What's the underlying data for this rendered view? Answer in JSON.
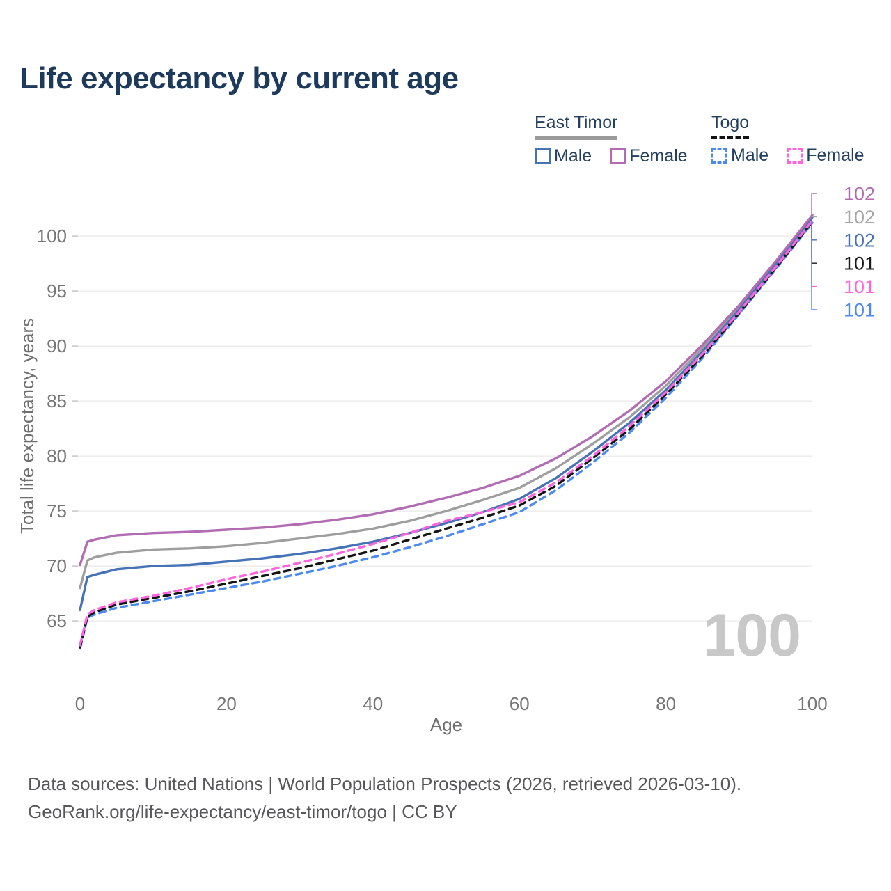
{
  "title": "Life expectancy by current age",
  "legend": {
    "groups": [
      {
        "name": "East Timor",
        "line_style": "solid",
        "underline_color": "#9b9b9b",
        "items": [
          {
            "label": "Male",
            "color": "#4673b5"
          },
          {
            "label": "Female",
            "color": "#b26cb2"
          }
        ]
      },
      {
        "name": "Togo",
        "line_style": "dashed",
        "underline_color": "#141414",
        "items": [
          {
            "label": "Male",
            "color": "#4d8af0"
          },
          {
            "label": "Female",
            "color": "#ff63dd"
          }
        ]
      }
    ]
  },
  "footer": {
    "line1": "Data sources: United Nations | World Population Prospects (2026, retrieved 2026-03-10).",
    "line2": "GeoRank.org/life-expectancy/east-timor/togo | CC BY"
  },
  "chart_data": {
    "type": "line",
    "title": "Life expectancy by current age",
    "xlabel": "Age",
    "ylabel": "Total life expectancy, years",
    "xlim": [
      0,
      100
    ],
    "ylim": [
      61.5,
      103
    ],
    "xticks": [
      0,
      20,
      40,
      60,
      80,
      100
    ],
    "yticks": [
      65,
      70,
      75,
      80,
      85,
      90,
      95,
      100
    ],
    "grid": "horizontal-only",
    "legend_position": "top-right",
    "age_indicator": "100",
    "x": [
      0,
      1,
      2,
      5,
      10,
      15,
      20,
      25,
      30,
      35,
      40,
      45,
      50,
      55,
      60,
      65,
      70,
      75,
      80,
      85,
      90,
      95,
      100
    ],
    "series": [
      {
        "name": "East Timor Both sexes",
        "country": "East Timor",
        "sex": "Both",
        "color": "#9e9e9e",
        "dashed": false,
        "values": [
          68.0,
          70.5,
          70.8,
          71.2,
          71.5,
          71.6,
          71.8,
          72.1,
          72.5,
          72.9,
          73.4,
          74.1,
          75.0,
          76.0,
          77.1,
          78.9,
          81.1,
          83.5,
          86.4,
          89.8,
          93.5,
          97.5,
          101.8
        ]
      },
      {
        "name": "East Timor Male",
        "country": "East Timor",
        "sex": "Male",
        "color": "#4673b5",
        "dashed": false,
        "values": [
          66.0,
          69.0,
          69.2,
          69.7,
          70.0,
          70.1,
          70.4,
          70.7,
          71.1,
          71.6,
          72.2,
          73.0,
          73.9,
          74.9,
          76.1,
          78.0,
          80.4,
          83.0,
          86.0,
          89.5,
          93.3,
          97.4,
          101.7
        ]
      },
      {
        "name": "East Timor Female",
        "country": "East Timor",
        "sex": "Female",
        "color": "#b26cb2",
        "dashed": false,
        "values": [
          70.1,
          72.2,
          72.4,
          72.8,
          73.0,
          73.1,
          73.3,
          73.5,
          73.8,
          74.2,
          74.7,
          75.4,
          76.2,
          77.1,
          78.2,
          79.8,
          81.8,
          84.1,
          86.8,
          90.1,
          93.7,
          97.7,
          101.9
        ]
      },
      {
        "name": "Togo Male",
        "country": "Togo",
        "sex": "Male",
        "color": "#4d8af0",
        "dashed": true,
        "values": [
          62.5,
          65.3,
          65.6,
          66.2,
          66.8,
          67.4,
          68.0,
          68.6,
          69.3,
          70.0,
          70.8,
          71.7,
          72.7,
          73.8,
          74.9,
          76.9,
          79.4,
          82.1,
          85.3,
          88.9,
          92.9,
          97.0,
          101.2
        ]
      },
      {
        "name": "Togo Both sexes",
        "country": "Togo",
        "sex": "Both",
        "color": "#141414",
        "dashed": true,
        "values": [
          62.6,
          65.4,
          65.8,
          66.5,
          67.1,
          67.7,
          68.4,
          69.1,
          69.8,
          70.6,
          71.4,
          72.4,
          73.4,
          74.4,
          75.5,
          77.3,
          79.8,
          82.4,
          85.6,
          89.1,
          93.0,
          97.1,
          101.3
        ]
      },
      {
        "name": "Togo Female",
        "country": "Togo",
        "sex": "Female",
        "color": "#ff63dd",
        "dashed": true,
        "values": [
          62.8,
          65.6,
          66.0,
          66.7,
          67.3,
          68.0,
          68.8,
          69.5,
          70.3,
          71.1,
          72.0,
          73.0,
          74.1,
          74.9,
          75.8,
          77.6,
          80.0,
          82.7,
          85.8,
          89.3,
          93.1,
          97.2,
          101.4
        ]
      }
    ],
    "end_labels": [
      {
        "flag": "east-timor",
        "value": "102",
        "color": "#b26cb2",
        "series": "East Timor Female"
      },
      {
        "flag": "east-timor",
        "value": "102",
        "color": "#a6a6a6",
        "series": "East Timor Both sexes"
      },
      {
        "flag": "east-timor",
        "value": "102",
        "color": "#4673b5",
        "series": "East Timor Male"
      },
      {
        "flag": "togo",
        "value": "101",
        "color": "#1a1a1a",
        "series": "Togo Both sexes"
      },
      {
        "flag": "togo",
        "value": "101",
        "color": "#ff63dd",
        "series": "Togo Female"
      },
      {
        "flag": "togo",
        "value": "101",
        "color": "#4d8af0",
        "series": "Togo Male"
      }
    ]
  }
}
